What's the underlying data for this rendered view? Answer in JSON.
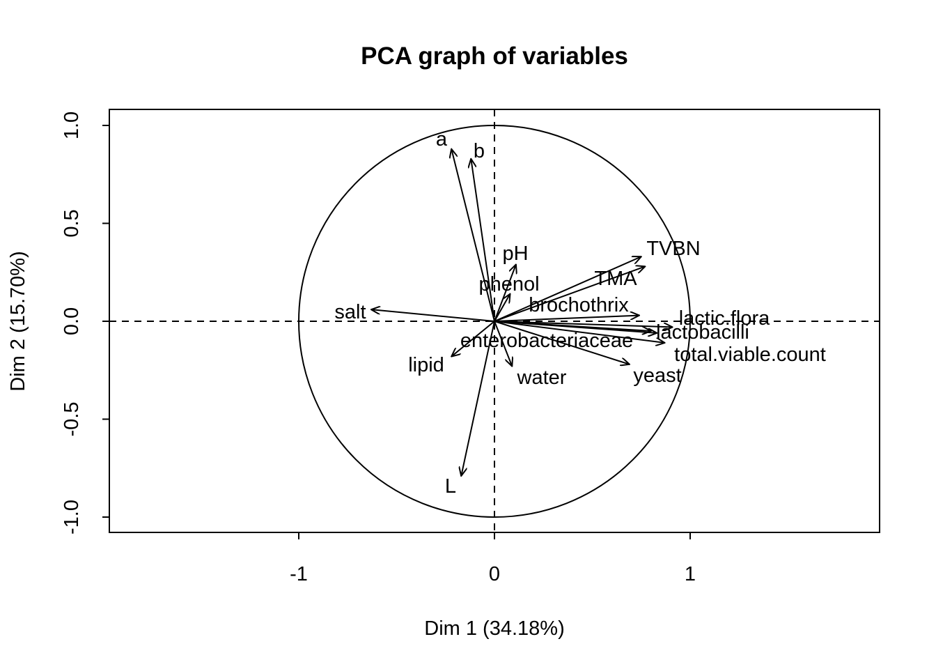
{
  "chart_data": {
    "type": "scatter",
    "subtype": "pca-correlation-circle",
    "title": "PCA graph of variables",
    "xlabel": "Dim 1 (34.18%)",
    "ylabel": "Dim 2 (15.70%)",
    "xlim": [
      -1.97,
      1.97
    ],
    "ylim": [
      -1.08,
      1.08
    ],
    "xticks": [
      -1,
      0,
      1
    ],
    "xtick_labels": [
      "-1",
      "0",
      "1"
    ],
    "yticks": [
      -1.0,
      -0.5,
      0.0,
      0.5,
      1.0
    ],
    "ytick_labels": [
      "-1.0",
      "-0.5",
      "0.0",
      "0.5",
      "1.0"
    ],
    "grid": false,
    "unit_circle": true,
    "reference_lines": "dashed at x=0 and y=0",
    "variables": [
      {
        "name": "a",
        "x": -0.22,
        "y": 0.88
      },
      {
        "name": "b",
        "x": -0.12,
        "y": 0.83
      },
      {
        "name": "pH",
        "x": 0.11,
        "y": 0.29
      },
      {
        "name": "phenol",
        "x": 0.08,
        "y": 0.14
      },
      {
        "name": "TVBN",
        "x": 0.75,
        "y": 0.33
      },
      {
        "name": "TMA",
        "x": 0.77,
        "y": 0.28
      },
      {
        "name": "brochothrix",
        "x": 0.74,
        "y": 0.03
      },
      {
        "name": "lactic.flora",
        "x": 0.91,
        "y": -0.03
      },
      {
        "name": "lactobacilli",
        "x": 0.8,
        "y": -0.05
      },
      {
        "name": "total.viable.count",
        "x": 0.87,
        "y": -0.11
      },
      {
        "name": "yeast",
        "x": 0.69,
        "y": -0.22
      },
      {
        "name": "enterobacteriaceae",
        "x": 0.83,
        "y": -0.06
      },
      {
        "name": "water",
        "x": 0.09,
        "y": -0.23
      },
      {
        "name": "salt",
        "x": -0.63,
        "y": 0.06
      },
      {
        "name": "lipid",
        "x": -0.22,
        "y": -0.18
      },
      {
        "name": "L",
        "x": -0.17,
        "y": -0.79
      }
    ]
  }
}
